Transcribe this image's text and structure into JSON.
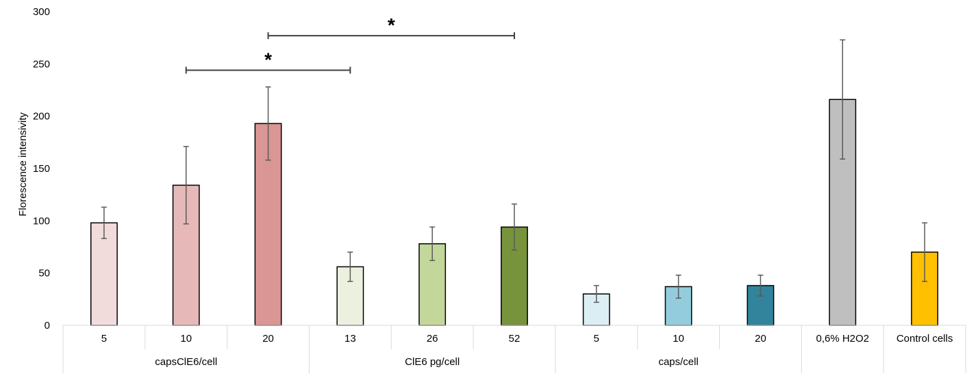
{
  "chart_data": {
    "type": "bar",
    "title": "",
    "xlabel": "",
    "ylabel": "Florescence intensivity",
    "ylim": [
      0,
      300
    ],
    "yticks": [
      0,
      50,
      100,
      150,
      200,
      250,
      300
    ],
    "grid": false,
    "legend": "none",
    "groups": [
      {
        "label": "capsClE6/cell",
        "bars": [
          {
            "category": "5",
            "value": 98,
            "error": 15,
            "color": "#f2dcdb"
          },
          {
            "category": "10",
            "value": 134,
            "error": 37,
            "color": "#e6b9b8"
          },
          {
            "category": "20",
            "value": 193,
            "error": 35,
            "color": "#d99694"
          }
        ]
      },
      {
        "label": "ClE6 pg/cell",
        "bars": [
          {
            "category": "13",
            "value": 56,
            "error": 14,
            "color": "#ebf1de"
          },
          {
            "category": "26",
            "value": 78,
            "error": 16,
            "color": "#c4d79b"
          },
          {
            "category": "52",
            "value": 94,
            "error": 22,
            "color": "#77933c"
          }
        ]
      },
      {
        "label": "caps/cell",
        "bars": [
          {
            "category": "5",
            "value": 30,
            "error": 8,
            "color": "#dbeef4"
          },
          {
            "category": "10",
            "value": 37,
            "error": 11,
            "color": "#93cddd"
          },
          {
            "category": "20",
            "value": 38,
            "error": 10,
            "color": "#31849b"
          }
        ]
      },
      {
        "label": "0,6% H2O2",
        "bars": [
          {
            "category": "",
            "value": 216,
            "error": 57,
            "color": "#bfbfbf"
          }
        ]
      },
      {
        "label": "Control cells",
        "bars": [
          {
            "category": "",
            "value": 70,
            "error": 28,
            "color": "#ffc000"
          }
        ]
      }
    ],
    "significance": [
      {
        "from_bar": 1,
        "to_bar": 3,
        "value": 244,
        "label": "*"
      },
      {
        "from_bar": 2,
        "to_bar": 5,
        "value": 277,
        "label": "*"
      }
    ]
  }
}
